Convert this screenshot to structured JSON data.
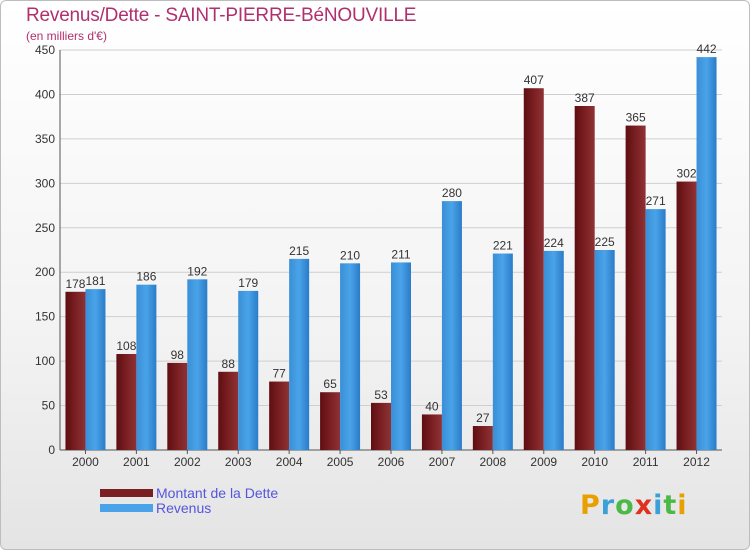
{
  "title": "Revenus/Dette - SAINT-PIERRE-BéNOUVILLE",
  "subtitle": "(en milliers d'€)",
  "colors": {
    "debt": "#7a1f22",
    "revenue": "#4aa3e8",
    "title": "#b0306e",
    "legend_text": "#5555dd"
  },
  "logo": {
    "letters": [
      {
        "char": "P",
        "color": "#e8a000"
      },
      {
        "char": "r",
        "color": "#3aa0d8"
      },
      {
        "char": "o",
        "color": "#4cb848"
      },
      {
        "char": "x",
        "color": "#e03020"
      },
      {
        "char": "i",
        "color": "#3aa0d8"
      },
      {
        "char": "t",
        "color": "#4cb848"
      },
      {
        "char": "i",
        "color": "#e8a000"
      }
    ]
  },
  "chart_data": {
    "type": "bar",
    "title": "Revenus/Dette - SAINT-PIERRE-BéNOUVILLE",
    "subtitle": "(en milliers d'€)",
    "categories": [
      "2000",
      "2001",
      "2002",
      "2003",
      "2004",
      "2005",
      "2006",
      "2007",
      "2008",
      "2009",
      "2010",
      "2011",
      "2012"
    ],
    "series": [
      {
        "name": "Montant de la Dette",
        "values": [
          178,
          108,
          98,
          88,
          77,
          65,
          53,
          40,
          27,
          407,
          387,
          365,
          302
        ]
      },
      {
        "name": "Revenus",
        "values": [
          181,
          186,
          192,
          179,
          215,
          210,
          211,
          280,
          221,
          224,
          225,
          271,
          442
        ]
      }
    ],
    "ylim": [
      0,
      450
    ],
    "yticks": [
      0,
      50,
      100,
      150,
      200,
      250,
      300,
      350,
      400,
      450
    ],
    "grid": true,
    "legend": "bottom-left"
  }
}
